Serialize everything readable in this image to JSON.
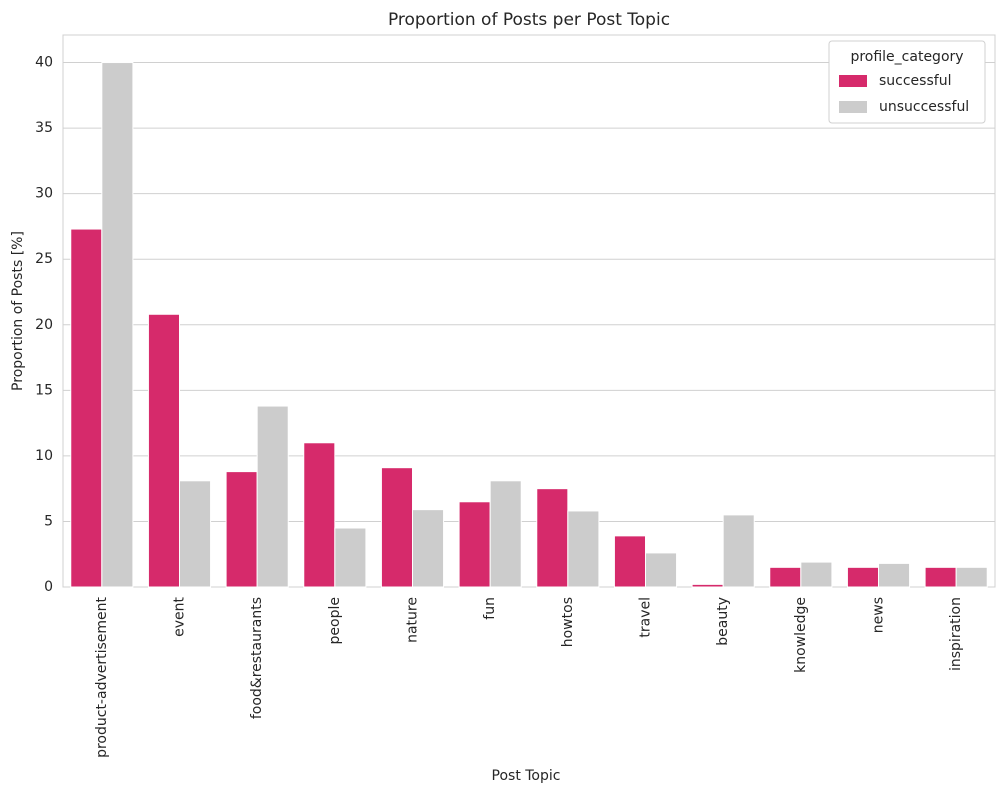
{
  "chart_data": {
    "type": "bar",
    "title": "Proportion of Posts per Post Topic",
    "x_label": "Post Topic",
    "y_label": "Proportion of Posts [%]",
    "categories": [
      "product-advertisement",
      "event",
      "food&restaurants",
      "people",
      "nature",
      "fun",
      "howtos",
      "travel",
      "beauty",
      "knowledge",
      "news",
      "inspiration"
    ],
    "series": [
      {
        "name": "successful",
        "color": "#d62a6b",
        "values": [
          27.3,
          20.8,
          8.8,
          11.0,
          9.1,
          6.5,
          7.5,
          3.9,
          0.2,
          1.5,
          1.5,
          1.5
        ]
      },
      {
        "name": "unsuccessful",
        "color": "#cccccc",
        "values": [
          40.0,
          8.1,
          13.8,
          4.5,
          5.9,
          8.1,
          5.8,
          2.6,
          5.5,
          1.9,
          1.8,
          1.5
        ]
      }
    ],
    "legend_title": "profile_category",
    "legend": "upper right",
    "ylim": [
      0,
      42.1
    ],
    "yticks": [
      0,
      5,
      10,
      15,
      20,
      25,
      30,
      35,
      40
    ],
    "grid": true
  }
}
